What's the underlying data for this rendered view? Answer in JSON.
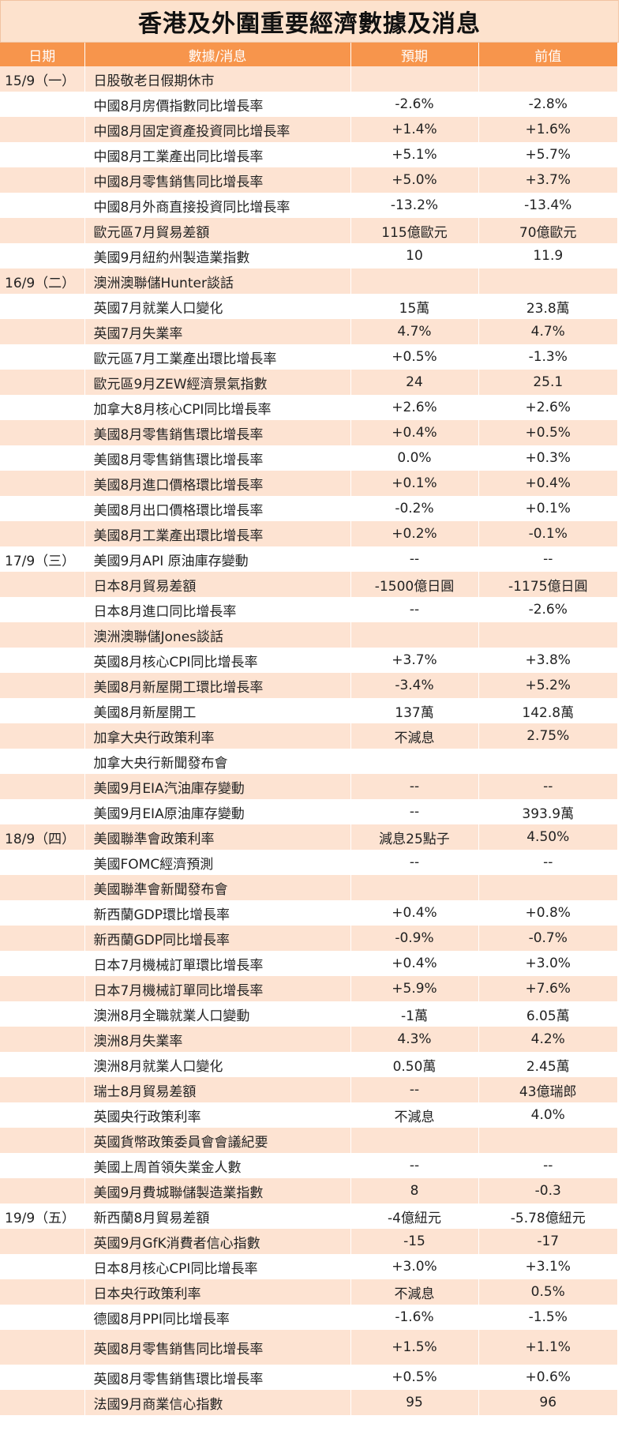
{
  "title": "香港及外圍重要經濟數據及消息",
  "columns": {
    "date": "日期",
    "item": "數據/消息",
    "forecast": "預期",
    "previous": "前值"
  },
  "rows": [
    {
      "date": "15/9（一）",
      "item": "日股敬老日假期休市",
      "forecast": "",
      "previous": ""
    },
    {
      "date": "",
      "item": "中國8月房價指數同比增長率",
      "forecast": "-2.6%",
      "previous": "-2.8%"
    },
    {
      "date": "",
      "item": "中國8月固定資產投資同比增長率",
      "forecast": "+1.4%",
      "previous": "+1.6%"
    },
    {
      "date": "",
      "item": "中國8月工業產出同比增長率",
      "forecast": "+5.1%",
      "previous": "+5.7%"
    },
    {
      "date": "",
      "item": "中國8月零售銷售同比增長率",
      "forecast": "+5.0%",
      "previous": "+3.7%"
    },
    {
      "date": "",
      "item": "中國8月外商直接投資同比增長率",
      "forecast": "-13.2%",
      "previous": "-13.4%"
    },
    {
      "date": "",
      "item": "歐元區7月貿易差額",
      "forecast": "115億歐元",
      "previous": "70億歐元"
    },
    {
      "date": "",
      "item": "美國9月紐約州製造業指數",
      "forecast": "10",
      "previous": "11.9"
    },
    {
      "date": "16/9（二）",
      "item": "澳洲澳聯儲Hunter談話",
      "forecast": "",
      "previous": ""
    },
    {
      "date": "",
      "item": "英國7月就業人口變化",
      "forecast": "15萬",
      "previous": "23.8萬"
    },
    {
      "date": "",
      "item": "英國7月失業率",
      "forecast": "4.7%",
      "previous": "4.7%"
    },
    {
      "date": "",
      "item": "歐元區7月工業產出環比增長率",
      "forecast": "+0.5%",
      "previous": "-1.3%"
    },
    {
      "date": "",
      "item": "歐元區9月ZEW經濟景氣指數",
      "forecast": "24",
      "previous": "25.1"
    },
    {
      "date": "",
      "item": "加拿大8月核心CPI同比增長率",
      "forecast": "+2.6%",
      "previous": "+2.6%"
    },
    {
      "date": "",
      "item": "美國8月零售銷售環比增長率",
      "forecast": "+0.4%",
      "previous": "+0.5%"
    },
    {
      "date": "",
      "item": "美國8月零售銷售環比增長率",
      "forecast": "0.0%",
      "previous": "+0.3%"
    },
    {
      "date": "",
      "item": "美國8月進口價格環比增長率",
      "forecast": "+0.1%",
      "previous": "+0.4%"
    },
    {
      "date": "",
      "item": "美國8月出口價格環比增長率",
      "forecast": "-0.2%",
      "previous": "+0.1%"
    },
    {
      "date": "",
      "item": "美國8月工業產出環比增長率",
      "forecast": "+0.2%",
      "previous": "-0.1%"
    },
    {
      "date": "17/9（三）",
      "item": "美國9月API 原油庫存變動",
      "forecast": "--",
      "previous": "--"
    },
    {
      "date": "",
      "item": "日本8月貿易差額",
      "forecast": "-1500億日圓",
      "previous": "-1175億日圓"
    },
    {
      "date": "",
      "item": "日本8月進口同比增長率",
      "forecast": "--",
      "previous": "-2.6%"
    },
    {
      "date": "",
      "item": "澳洲澳聯儲Jones談話",
      "forecast": "",
      "previous": ""
    },
    {
      "date": "",
      "item": "英國8月核心CPI同比增長率",
      "forecast": "+3.7%",
      "previous": "+3.8%"
    },
    {
      "date": "",
      "item": "美國8月新屋開工環比增長率",
      "forecast": "-3.4%",
      "previous": "+5.2%"
    },
    {
      "date": "",
      "item": "美國8月新屋開工",
      "forecast": "137萬",
      "previous": "142.8萬"
    },
    {
      "date": "",
      "item": "加拿大央行政策利率",
      "forecast": "不減息",
      "previous": "2.75%"
    },
    {
      "date": "",
      "item": "加拿大央行新聞發布會",
      "forecast": "",
      "previous": ""
    },
    {
      "date": "",
      "item": "美國9月EIA汽油庫存變動",
      "forecast": "--",
      "previous": "--"
    },
    {
      "date": "",
      "item": "美國9月EIA原油庫存變動",
      "forecast": "--",
      "previous": "393.9萬"
    },
    {
      "date": "18/9（四）",
      "item": "美國聯準會政策利率",
      "forecast": "減息25點子",
      "previous": "4.50%"
    },
    {
      "date": "",
      "item": "美國FOMC經濟預測",
      "forecast": "--",
      "previous": "--"
    },
    {
      "date": "",
      "item": "美國聯準會新聞發布會",
      "forecast": "",
      "previous": ""
    },
    {
      "date": "",
      "item": "新西蘭GDP環比增長率",
      "forecast": "+0.4%",
      "previous": "+0.8%"
    },
    {
      "date": "",
      "item": "新西蘭GDP同比增長率",
      "forecast": "-0.9%",
      "previous": "-0.7%"
    },
    {
      "date": "",
      "item": "日本7月機械訂單環比增長率",
      "forecast": "+0.4%",
      "previous": "+3.0%"
    },
    {
      "date": "",
      "item": "日本7月機械訂單同比增長率",
      "forecast": "+5.9%",
      "previous": "+7.6%"
    },
    {
      "date": "",
      "item": "澳洲8月全職就業人口變動",
      "forecast": "-1萬",
      "previous": "6.05萬"
    },
    {
      "date": "",
      "item": "澳洲8月失業率",
      "forecast": "4.3%",
      "previous": "4.2%"
    },
    {
      "date": "",
      "item": "澳洲8月就業人口變化",
      "forecast": "0.50萬",
      "previous": "2.45萬"
    },
    {
      "date": "",
      "item": "瑞士8月貿易差額",
      "forecast": "--",
      "previous": "43億瑞郎"
    },
    {
      "date": "",
      "item": "英國央行政策利率",
      "forecast": "不減息",
      "previous": "4.0%"
    },
    {
      "date": "",
      "item": "英國貨幣政策委員會會議紀要",
      "forecast": "",
      "previous": ""
    },
    {
      "date": "",
      "item": "美國上周首領失業金人數",
      "forecast": "--",
      "previous": "--"
    },
    {
      "date": "",
      "item": "美國9月費城聯儲製造業指數",
      "forecast": "8",
      "previous": "-0.3"
    },
    {
      "date": "19/9（五）",
      "item": "新西蘭8月貿易差額",
      "forecast": "-4億紐元",
      "previous": "-5.78億紐元"
    },
    {
      "date": "",
      "item": "英國9月GfK消費者信心指數",
      "forecast": "-15",
      "previous": "-17"
    },
    {
      "date": "",
      "item": "日本8月核心CPI同比增長率",
      "forecast": "+3.0%",
      "previous": "+3.1%"
    },
    {
      "date": "",
      "item": "日本央行政策利率",
      "forecast": "不減息",
      "previous": "0.5%"
    },
    {
      "date": "",
      "item": "德國8月PPI同比增長率",
      "forecast": "-1.6%",
      "previous": "-1.5%"
    },
    {
      "date": "",
      "item": "英國8月零售銷售同比增長率",
      "forecast": "+1.5%",
      "previous": "+1.1%"
    },
    {
      "date": "",
      "item": "英國8月零售銷售環比增長率",
      "forecast": "+0.5%",
      "previous": "+0.6%"
    },
    {
      "date": "",
      "item": "法國9月商業信心指數",
      "forecast": "95",
      "previous": "96"
    }
  ],
  "colors": {
    "header_bg": "#f7954c",
    "title_bg": "#fde2cd",
    "row_alt_bg": "#fde3d2",
    "row_bg": "#ffffff"
  }
}
